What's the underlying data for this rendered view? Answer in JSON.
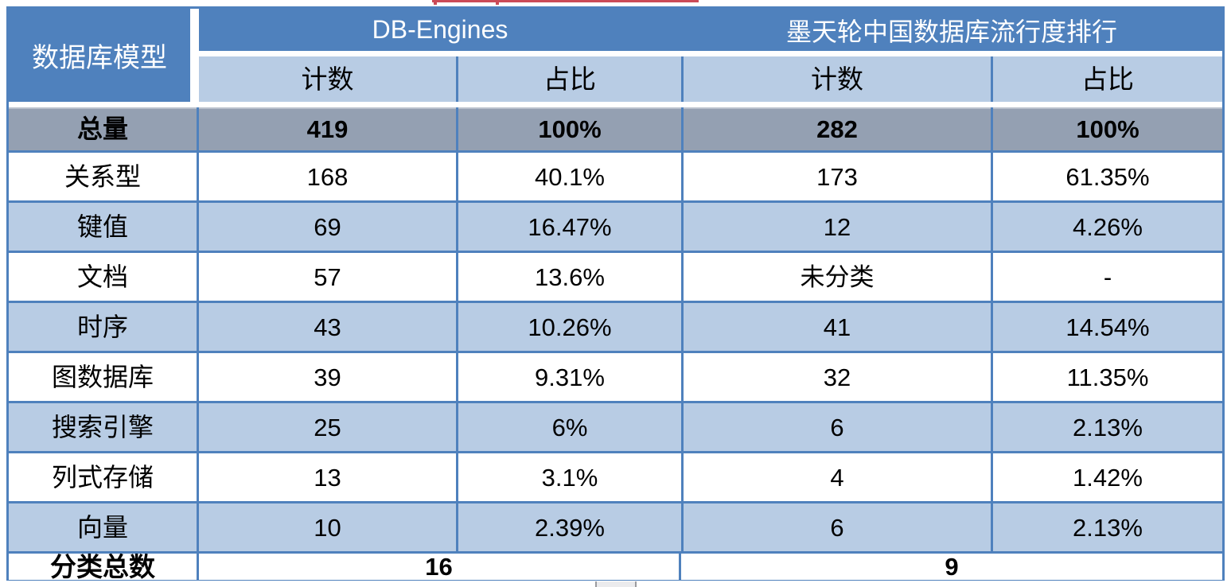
{
  "colors": {
    "header_blue": "#4F81BD",
    "band_light_blue": "#B8CCE4",
    "total_row_gray": "#94A0B2",
    "grid_border_blue": "#4F81BD",
    "header_text": "#FFFFFF",
    "body_text": "#000000",
    "red_line": "#CB4A57",
    "scroll_thumb_gray": "#EBEBED"
  },
  "chart_data": {
    "type": "table",
    "corner_label": "数据库模型",
    "column_groups": [
      {
        "label": "DB-Engines",
        "columns": [
          "计数",
          "占比"
        ]
      },
      {
        "label": "墨天轮中国数据库流行度排行",
        "columns": [
          "计数",
          "占比"
        ]
      }
    ],
    "total_row": {
      "label": "总量",
      "values": [
        "419",
        "100%",
        "282",
        "100%"
      ]
    },
    "rows": [
      {
        "label": "关系型",
        "values": [
          "168",
          "40.1%",
          "173",
          "61.35%"
        ]
      },
      {
        "label": "键值",
        "values": [
          "69",
          "16.47%",
          "12",
          "4.26%"
        ]
      },
      {
        "label": "文档",
        "values": [
          "57",
          "13.6%",
          "未分类",
          "-"
        ]
      },
      {
        "label": "时序",
        "values": [
          "43",
          "10.26%",
          "41",
          "14.54%"
        ]
      },
      {
        "label": "图数据库",
        "values": [
          "39",
          "9.31%",
          "32",
          "11.35%"
        ]
      },
      {
        "label": "搜索引擎",
        "values": [
          "25",
          "6%",
          "6",
          "2.13%"
        ]
      },
      {
        "label": "列式存储",
        "values": [
          "13",
          "3.1%",
          "4",
          "1.42%"
        ]
      },
      {
        "label": "向量",
        "values": [
          "10",
          "2.39%",
          "6",
          "2.13%"
        ]
      }
    ],
    "footer_row": {
      "label": "分类总数",
      "values": [
        "16",
        "9"
      ]
    }
  }
}
